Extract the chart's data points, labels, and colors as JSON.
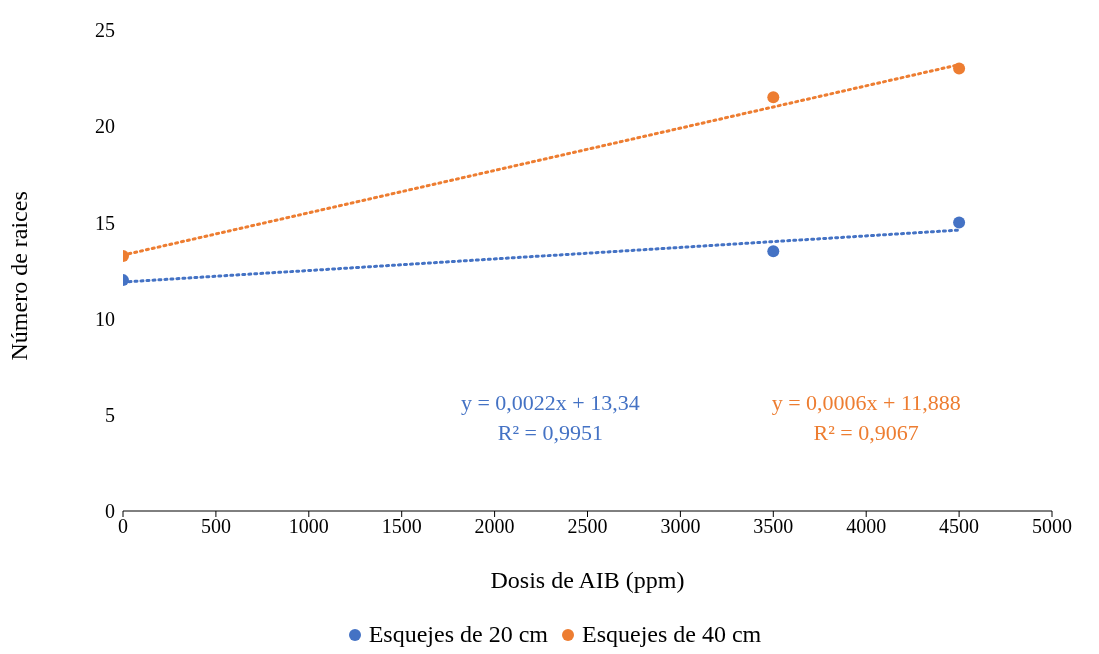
{
  "chart_data": {
    "type": "scatter",
    "xlabel": "Dosis de AIB (ppm)",
    "ylabel": "Número de raices",
    "series": [
      {
        "name": "Esquejes de 20 cm",
        "color": "#4472c4",
        "x": [
          0,
          3500,
          4500
        ],
        "values": [
          12,
          13.5,
          15
        ],
        "marker": "circle"
      },
      {
        "name": "Esquejes de 40 cm",
        "color": "#ed7d31",
        "x": [
          0,
          3500,
          4500
        ],
        "values": [
          13.25,
          21.5,
          23
        ],
        "marker": "circle"
      },
      {
        "type": "line",
        "color": "#4472c4",
        "x": [
          0,
          4500
        ],
        "values": [
          11.9,
          14.6
        ],
        "line_style": "dotted",
        "marker": "none"
      },
      {
        "type": "line",
        "color": "#ed7d31",
        "x": [
          0,
          4500
        ],
        "values": [
          13.3,
          23.2
        ],
        "line_style": "dotted",
        "marker": "none"
      }
    ],
    "annotations": [
      "y = 0,0022x + 13,34\nR² = 0,9951",
      "y = 0,0006x + 11,888\nR² = 0,9067"
    ],
    "xlim": [
      0,
      5000
    ],
    "xticks": [
      0,
      500,
      1000,
      1500,
      2000,
      2500,
      3000,
      3500,
      4000,
      4500,
      5000
    ],
    "ylim": [
      0,
      25
    ],
    "yticks": [
      0,
      5,
      10,
      15,
      20,
      25
    ],
    "grid": false,
    "legend": "bottom"
  }
}
